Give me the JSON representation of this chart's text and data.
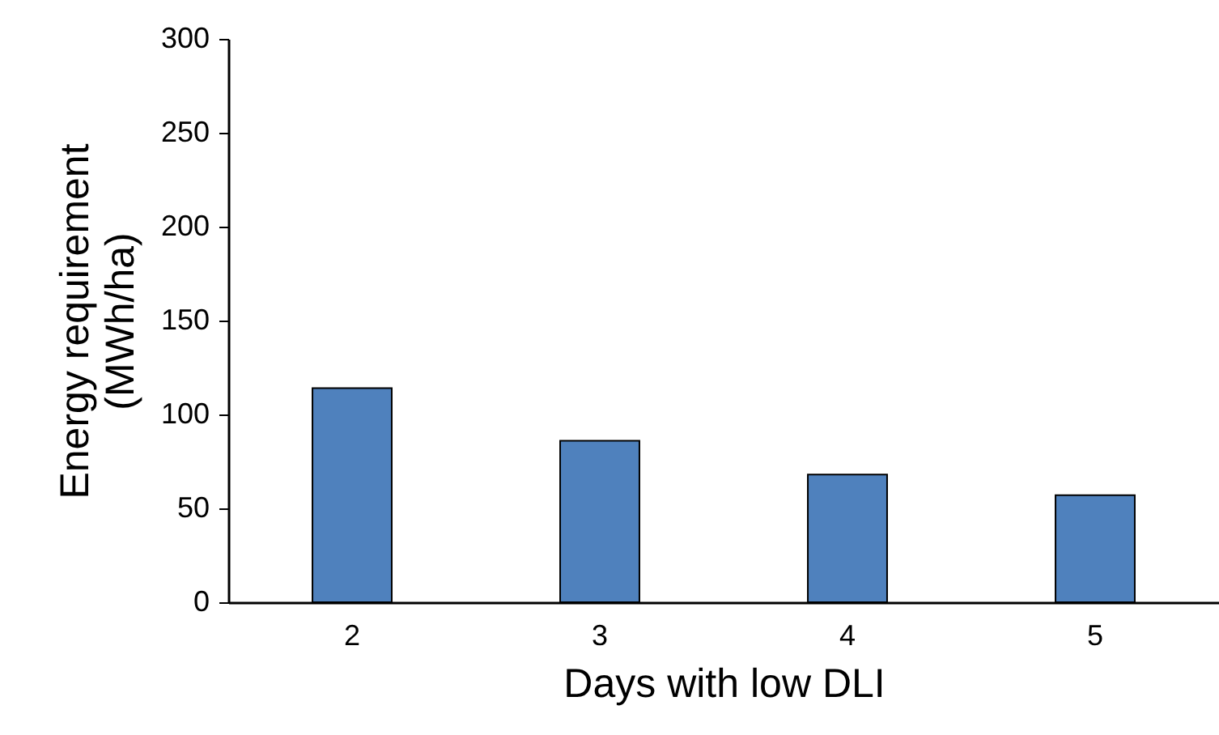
{
  "chart_data": {
    "type": "bar",
    "xlabel": "Days with low DLI",
    "ylabel": "Energy requirement\n(MWh/ha)",
    "categories": [
      "2",
      "3",
      "4",
      "5"
    ],
    "values": [
      114,
      86,
      68,
      57
    ],
    "color": "#4f81bd",
    "ylim": [
      0,
      300
    ],
    "yticks": [
      0,
      50,
      100,
      150,
      200,
      250,
      300
    ],
    "grid": false
  }
}
